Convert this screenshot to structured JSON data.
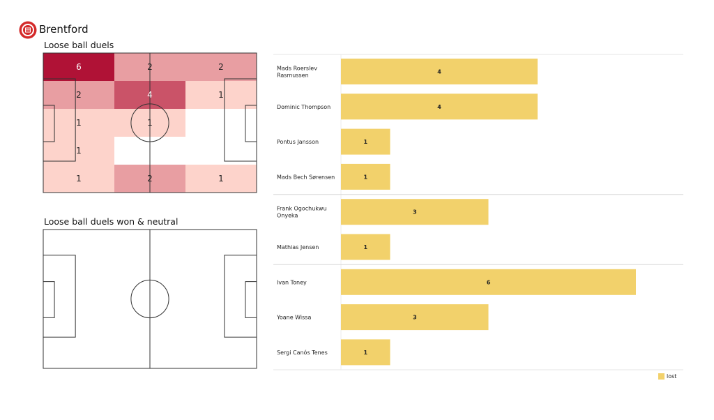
{
  "team": {
    "name": "Brentford",
    "logo_colors": {
      "ring": "#d42a2a",
      "inner": "#ffffff",
      "accent": "#d42a2a"
    }
  },
  "pitches": {
    "top_title": "Loose ball duels",
    "bottom_title": "Loose ball duels won & neutral"
  },
  "chart_data": [
    {
      "type": "heatmap",
      "title": "Loose ball duels",
      "rows": 5,
      "cols": 3,
      "cells": [
        [
          6,
          2,
          2
        ],
        [
          2,
          4,
          1
        ],
        [
          1,
          1,
          0
        ],
        [
          1,
          0,
          0
        ],
        [
          1,
          2,
          1
        ]
      ],
      "color_scale": {
        "low": "#fdd3cb",
        "high": "#b01236",
        "zero": "#ffffff"
      }
    },
    {
      "type": "heatmap",
      "title": "Loose ball duels won & neutral",
      "rows": 5,
      "cols": 3,
      "cells": [
        [
          0,
          0,
          0
        ],
        [
          0,
          0,
          0
        ],
        [
          0,
          0,
          0
        ],
        [
          0,
          0,
          0
        ],
        [
          0,
          0,
          0
        ]
      ]
    },
    {
      "type": "bar",
      "orientation": "horizontal",
      "categories": [
        "Mads Roerslev Rasmussen",
        "Dominic Thompson",
        "Pontus Jansson",
        "Mads Bech Sørensen",
        "Frank Ogochukwu Onyeka",
        "Mathias Jensen",
        "Ivan Toney",
        "Yoane Wissa",
        "Sergi Canós Tenes"
      ],
      "label_lines": [
        [
          "Mads Roerslev",
          "Rasmussen"
        ],
        [
          "Dominic Thompson"
        ],
        [
          "Pontus Jansson"
        ],
        [
          "Mads Bech Sørensen"
        ],
        [
          "Frank Ogochukwu",
          "Onyeka"
        ],
        [
          "Mathias Jensen"
        ],
        [
          "Ivan Toney"
        ],
        [
          "Yoane Wissa"
        ],
        [
          "Sergi Canós Tenes"
        ]
      ],
      "groups": [
        [
          0,
          1,
          2,
          3
        ],
        [
          4,
          5
        ],
        [
          6,
          7,
          8
        ]
      ],
      "series": [
        {
          "name": "lost",
          "color": "#f2d16b",
          "values": [
            4,
            4,
            1,
            1,
            3,
            1,
            6,
            3,
            1
          ]
        }
      ],
      "xlim": [
        0,
        6
      ],
      "legend": "bottom-right"
    }
  ]
}
